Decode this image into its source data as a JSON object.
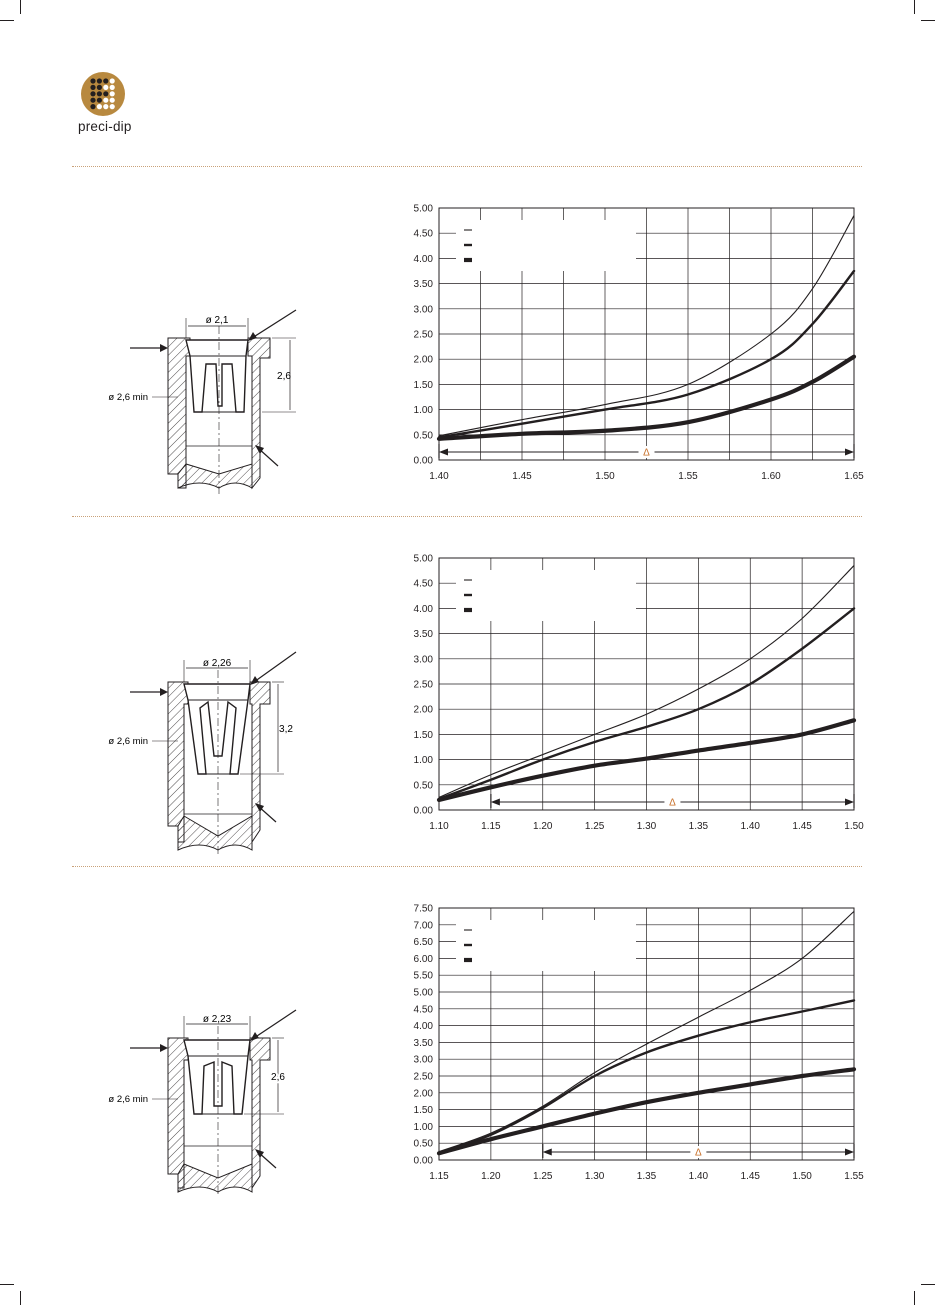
{
  "brand": {
    "name": "preci-dip",
    "colors": {
      "logo_gold": "#b8893f",
      "dark": "#231f20",
      "accent_delta": "#c8702a",
      "separator": "#c9a27a"
    }
  },
  "panels": [
    {
      "drawing": {
        "dim_diameter_top": "ø 2,1",
        "dim_height": "2,6",
        "dim_min_diameter": "ø 2,6 min"
      },
      "chart_data": {
        "type": "line",
        "x_ticks": [
          "1.40",
          "1.45",
          "1.50",
          "1.55",
          "1.60",
          "1.65"
        ],
        "y_ticks": [
          "0.00",
          "0.50",
          "1.00",
          "1.50",
          "2.00",
          "2.50",
          "3.00",
          "3.50",
          "4.00",
          "4.50",
          "5.00"
        ],
        "xlim": [
          1.4,
          1.65
        ],
        "ylim": [
          0,
          5
        ],
        "grid": true,
        "legend_placement": "top-left",
        "delta_label": "Δ",
        "delta_range": [
          1.4,
          1.65
        ],
        "series": [
          {
            "weight": "thin",
            "x": [
              1.4,
              1.45,
              1.5,
              1.55,
              1.6,
              1.625,
              1.65
            ],
            "y": [
              0.48,
              0.8,
              1.1,
              1.5,
              2.5,
              3.4,
              4.85
            ]
          },
          {
            "weight": "medium",
            "x": [
              1.4,
              1.45,
              1.5,
              1.55,
              1.6,
              1.625,
              1.65
            ],
            "y": [
              0.45,
              0.72,
              1.0,
              1.3,
              2.0,
              2.7,
              3.75
            ]
          },
          {
            "weight": "thick",
            "x": [
              1.4,
              1.45,
              1.5,
              1.55,
              1.6,
              1.625,
              1.65
            ],
            "y": [
              0.42,
              0.52,
              0.58,
              0.75,
              1.2,
              1.55,
              2.05
            ]
          }
        ]
      }
    },
    {
      "drawing": {
        "dim_diameter_top": "ø 2,26",
        "dim_height": "3,2",
        "dim_min_diameter": "ø 2,6 min"
      },
      "chart_data": {
        "type": "line",
        "x_ticks": [
          "1.10",
          "1.15",
          "1.20",
          "1.25",
          "1.30",
          "1.35",
          "1.40",
          "1.45",
          "1.50"
        ],
        "y_ticks": [
          "0.00",
          "0.50",
          "1.00",
          "1.50",
          "2.00",
          "2.50",
          "3.00",
          "3.50",
          "4.00",
          "4.50",
          "5.00"
        ],
        "xlim": [
          1.1,
          1.5
        ],
        "ylim": [
          0,
          5
        ],
        "grid": true,
        "legend_placement": "top-left",
        "delta_label": "Δ",
        "delta_range": [
          1.15,
          1.5
        ],
        "series": [
          {
            "weight": "thin",
            "x": [
              1.1,
              1.15,
              1.2,
              1.25,
              1.3,
              1.35,
              1.4,
              1.45,
              1.5
            ],
            "y": [
              0.25,
              0.7,
              1.1,
              1.5,
              1.9,
              2.4,
              3.0,
              3.8,
              4.85
            ]
          },
          {
            "weight": "medium",
            "x": [
              1.1,
              1.15,
              1.2,
              1.25,
              1.3,
              1.35,
              1.4,
              1.45,
              1.5
            ],
            "y": [
              0.22,
              0.6,
              1.0,
              1.35,
              1.65,
              2.0,
              2.5,
              3.2,
              4.0
            ]
          },
          {
            "weight": "thick",
            "x": [
              1.1,
              1.15,
              1.2,
              1.25,
              1.3,
              1.35,
              1.4,
              1.45,
              1.5
            ],
            "y": [
              0.2,
              0.45,
              0.68,
              0.88,
              1.02,
              1.18,
              1.33,
              1.5,
              1.78
            ]
          }
        ]
      }
    },
    {
      "drawing": {
        "dim_diameter_top": "ø 2,23",
        "dim_height": "2,6",
        "dim_min_diameter": "ø 2,6 min"
      },
      "chart_data": {
        "type": "line",
        "x_ticks": [
          "1.15",
          "1.20",
          "1.25",
          "1.30",
          "1.35",
          "1.40",
          "1.45",
          "1.50",
          "1.55"
        ],
        "y_ticks": [
          "0.00",
          "0.50",
          "1.00",
          "1.50",
          "2.00",
          "2.50",
          "3.00",
          "3.50",
          "4.00",
          "4.50",
          "5.00",
          "5.50",
          "6.00",
          "6.50",
          "7.00",
          "7.50"
        ],
        "xlim": [
          1.15,
          1.55
        ],
        "ylim": [
          0,
          7.5
        ],
        "grid": true,
        "legend_placement": "top-left",
        "delta_label": "Δ",
        "delta_range": [
          1.25,
          1.55
        ],
        "series": [
          {
            "weight": "thin",
            "x": [
              1.15,
              1.2,
              1.25,
              1.3,
              1.35,
              1.4,
              1.45,
              1.5,
              1.55
            ],
            "y": [
              0.25,
              0.8,
              1.6,
              2.6,
              3.45,
              4.25,
              5.05,
              6.0,
              7.4
            ]
          },
          {
            "weight": "medium",
            "x": [
              1.15,
              1.2,
              1.25,
              1.3,
              1.35,
              1.4,
              1.45,
              1.5,
              1.55
            ],
            "y": [
              0.22,
              0.75,
              1.55,
              2.5,
              3.2,
              3.7,
              4.1,
              4.42,
              4.75
            ]
          },
          {
            "weight": "thick",
            "x": [
              1.15,
              1.2,
              1.25,
              1.3,
              1.35,
              1.4,
              1.45,
              1.5,
              1.55
            ],
            "y": [
              0.2,
              0.62,
              1.0,
              1.38,
              1.72,
              2.0,
              2.25,
              2.5,
              2.7
            ]
          }
        ]
      }
    }
  ]
}
